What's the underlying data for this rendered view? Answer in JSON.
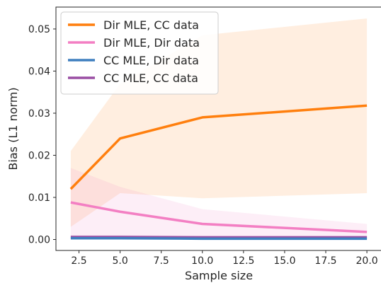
{
  "chart_data": {
    "type": "line",
    "title": "",
    "xlabel": "Sample size",
    "ylabel": "Bias (L1 norm)",
    "x": [
      2,
      5,
      10,
      20
    ],
    "xlim": [
      1.1,
      20.9
    ],
    "ylim": [
      -0.0026,
      0.0552
    ],
    "xticks": [
      2.5,
      5.0,
      7.5,
      10.0,
      12.5,
      15.0,
      17.5,
      20.0
    ],
    "xtick_labels": [
      "2.5",
      "5.0",
      "7.5",
      "10.0",
      "12.5",
      "15.0",
      "17.5",
      "20.0"
    ],
    "yticks": [
      0.0,
      0.01,
      0.02,
      0.03,
      0.04,
      0.05
    ],
    "ytick_labels": [
      "0.00",
      "0.01",
      "0.02",
      "0.03",
      "0.04",
      "0.05"
    ],
    "grid": false,
    "legend_position": "top-left",
    "series": [
      {
        "name": "Dir MLE, CC data",
        "color": "#ff7f0e",
        "values": [
          0.012,
          0.024,
          0.029,
          0.0318
        ],
        "band_lower": [
          0.003,
          0.011,
          0.0098,
          0.011
        ],
        "band_upper": [
          0.021,
          0.037,
          0.0485,
          0.0525
        ]
      },
      {
        "name": "Dir MLE, Dir data",
        "color": "#f37fc3",
        "values": [
          0.0088,
          0.0066,
          0.0037,
          0.0018
        ],
        "band_lower": [
          0.0006,
          0.0007,
          0.0005,
          0.0004
        ],
        "band_upper": [
          0.017,
          0.0125,
          0.0072,
          0.0037
        ]
      },
      {
        "name": "CC MLE, Dir data",
        "color": "#3f7fbf",
        "values": [
          0.0003,
          0.0003,
          0.0002,
          0.0002
        ],
        "band_lower": [
          0.0001,
          0.0001,
          0.0001,
          0.0001
        ],
        "band_upper": [
          0.0006,
          0.0006,
          0.0005,
          0.0005
        ]
      },
      {
        "name": "CC MLE, CC data",
        "color": "#9a4ea3",
        "values": [
          0.0006,
          0.0006,
          0.0005,
          0.0005
        ],
        "band_lower": [
          0.0002,
          0.0002,
          0.0002,
          0.0002
        ],
        "band_upper": [
          0.001,
          0.001,
          0.0009,
          0.0009
        ]
      }
    ]
  }
}
